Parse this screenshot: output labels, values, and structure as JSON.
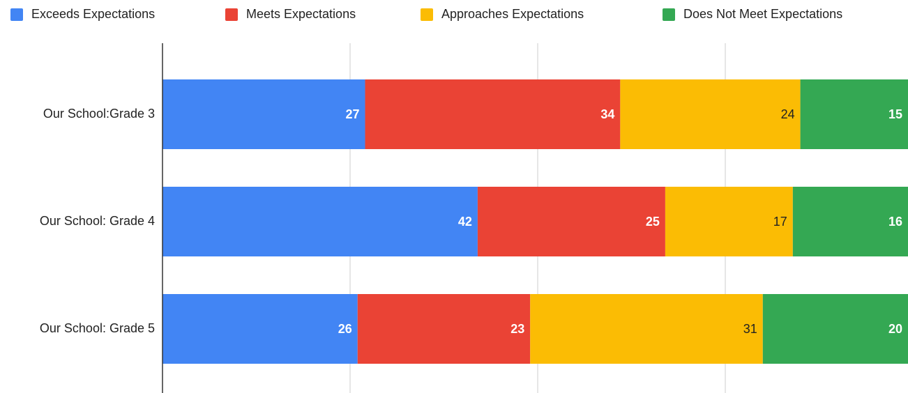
{
  "chart_data": {
    "type": "stacked-bar-horizontal",
    "categories": [
      "Our School:Grade 3",
      "Our School: Grade 4",
      "Our School: Grade 5"
    ],
    "series": [
      {
        "name": "Exceeds Expectations",
        "color": "#4285f4",
        "values": [
          27,
          42,
          26
        ]
      },
      {
        "name": "Meets Expectations",
        "color": "#ea4335",
        "values": [
          34,
          25,
          23
        ]
      },
      {
        "name": "Approaches Expectations",
        "color": "#fbbc04",
        "values": [
          24,
          17,
          31
        ]
      },
      {
        "name": "Does Not Meet Expectations",
        "color": "#34a853",
        "values": [
          15,
          16,
          20
        ]
      }
    ],
    "xlim": [
      0,
      100
    ],
    "xticks": [
      0,
      25,
      50,
      75
    ],
    "grid": true,
    "legend": "top"
  }
}
